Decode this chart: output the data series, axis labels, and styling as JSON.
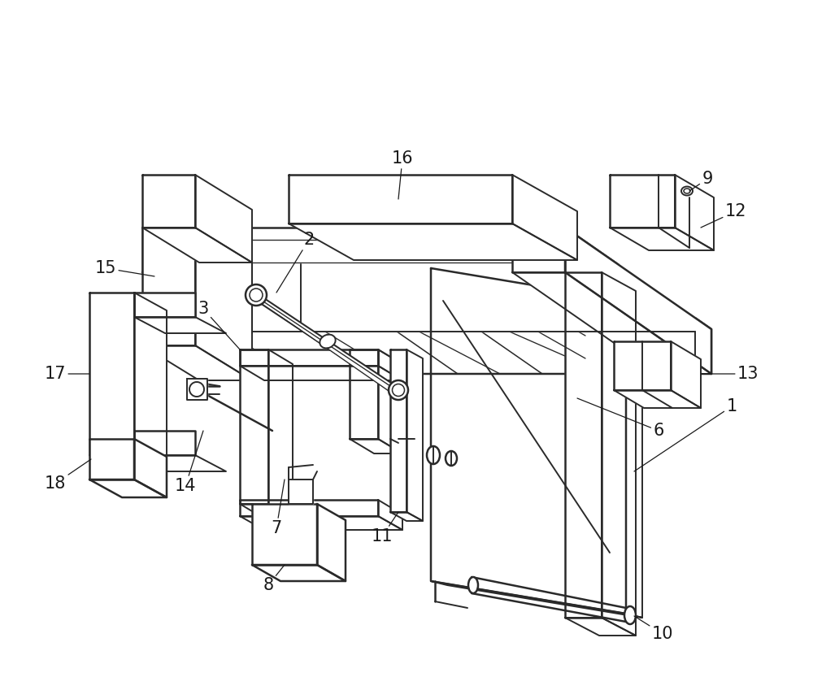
{
  "background_color": "#ffffff",
  "line_color": "#2a2a2a",
  "line_width": 1.4,
  "label_fontsize": 15,
  "fig_width": 10.0,
  "fig_height": 8.49,
  "dpi": 100
}
